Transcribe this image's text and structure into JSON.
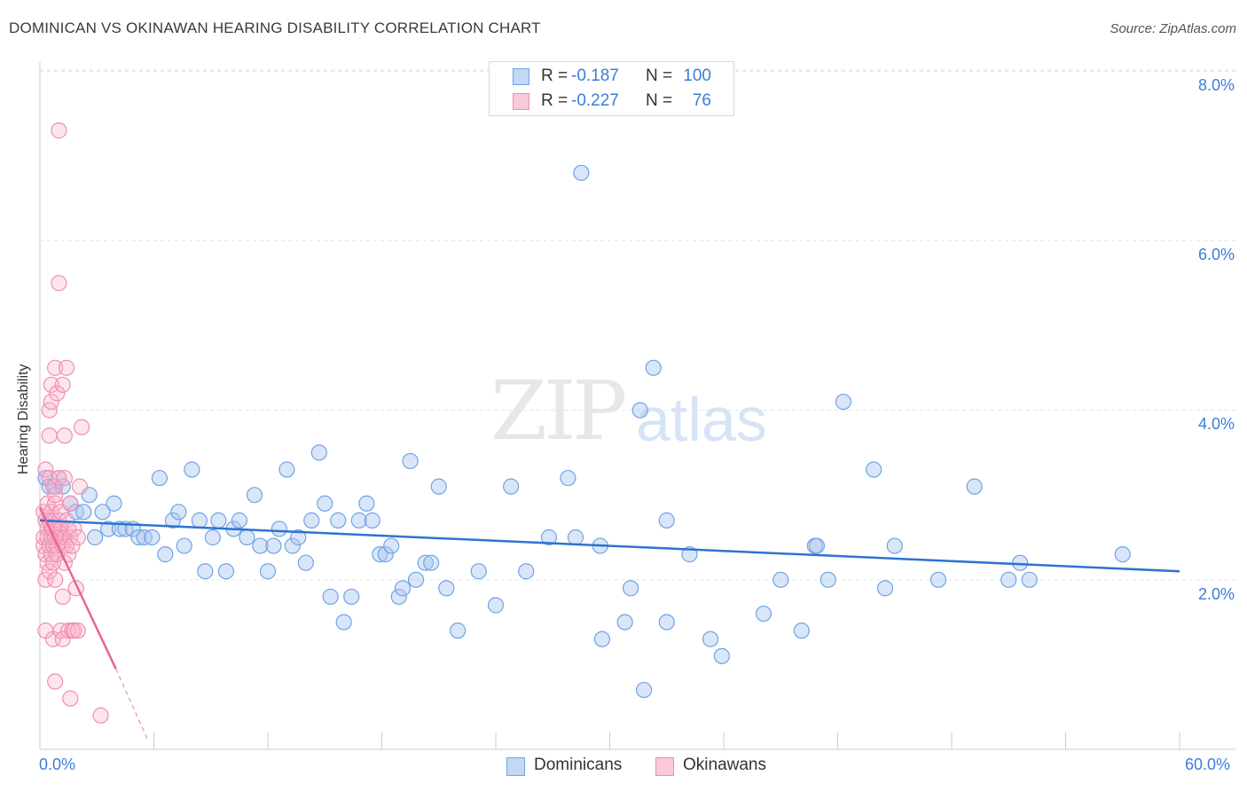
{
  "header": {
    "title": "DOMINICAN VS OKINAWAN HEARING DISABILITY CORRELATION CHART",
    "source": "Source: ZipAtlas.com"
  },
  "watermark": {
    "zip": "ZIP",
    "atlas": "atlas"
  },
  "legend": {
    "r_label": "R =",
    "n_label": "N =",
    "rows": [
      {
        "r": "-0.187",
        "n": "100",
        "color": "#6fa3e6",
        "fill": "#c3d8f5"
      },
      {
        "r": "-0.227",
        "n": "76",
        "color": "#ef8fb0",
        "fill": "#f9c9d9"
      }
    ]
  },
  "bottom_legend": [
    {
      "label": "Dominicans",
      "color": "#6fa3e6",
      "fill": "#c3d8f5"
    },
    {
      "label": "Okinawans",
      "color": "#ef8fb0",
      "fill": "#f9c9d9"
    }
  ],
  "chart_data": {
    "type": "scatter",
    "title": "DOMINICAN VS OKINAWAN HEARING DISABILITY CORRELATION CHART",
    "xlabel": "",
    "ylabel": "Hearing Disability",
    "xlim": [
      0,
      60
    ],
    "ylim": [
      0,
      8.8
    ],
    "x_tick_labels": [
      "0.0%",
      "60.0%"
    ],
    "y_ticks": [
      2,
      4,
      6,
      8
    ],
    "y_tick_labels": [
      "2.0%",
      "4.0%",
      "6.0%",
      "8.0%"
    ],
    "grid": true,
    "series": [
      {
        "name": "Dominicans",
        "color": "#6fa3e6",
        "trend": {
          "x": [
            0,
            60
          ],
          "y": [
            2.7,
            2.1
          ]
        },
        "points": [
          [
            0.3,
            3.2
          ],
          [
            0.5,
            3.1
          ],
          [
            0.8,
            3.1
          ],
          [
            1.0,
            3.2
          ],
          [
            1.2,
            3.1
          ],
          [
            1.6,
            2.9
          ],
          [
            1.9,
            2.8
          ],
          [
            2.3,
            2.8
          ],
          [
            2.6,
            3.0
          ],
          [
            2.9,
            2.5
          ],
          [
            3.3,
            2.8
          ],
          [
            3.6,
            2.6
          ],
          [
            3.9,
            2.9
          ],
          [
            4.2,
            2.6
          ],
          [
            4.5,
            2.6
          ],
          [
            4.9,
            2.6
          ],
          [
            5.2,
            2.5
          ],
          [
            5.5,
            2.5
          ],
          [
            5.9,
            2.5
          ],
          [
            6.3,
            3.2
          ],
          [
            6.6,
            2.3
          ],
          [
            7.0,
            2.7
          ],
          [
            7.3,
            2.8
          ],
          [
            7.6,
            2.4
          ],
          [
            8.0,
            3.3
          ],
          [
            8.4,
            2.7
          ],
          [
            8.7,
            2.1
          ],
          [
            9.1,
            2.5
          ],
          [
            9.4,
            2.7
          ],
          [
            9.8,
            2.1
          ],
          [
            10.2,
            2.6
          ],
          [
            10.5,
            2.7
          ],
          [
            10.9,
            2.5
          ],
          [
            11.3,
            3.0
          ],
          [
            11.6,
            2.4
          ],
          [
            12.0,
            2.1
          ],
          [
            12.3,
            2.4
          ],
          [
            12.6,
            2.6
          ],
          [
            13.0,
            3.3
          ],
          [
            13.3,
            2.4
          ],
          [
            13.6,
            2.5
          ],
          [
            14.0,
            2.2
          ],
          [
            14.3,
            2.7
          ],
          [
            14.7,
            3.5
          ],
          [
            15.0,
            2.9
          ],
          [
            15.3,
            1.8
          ],
          [
            15.7,
            2.7
          ],
          [
            16.0,
            1.5
          ],
          [
            16.4,
            1.8
          ],
          [
            16.8,
            2.7
          ],
          [
            17.2,
            2.9
          ],
          [
            17.5,
            2.7
          ],
          [
            17.9,
            2.3
          ],
          [
            18.2,
            2.3
          ],
          [
            18.5,
            2.4
          ],
          [
            18.9,
            1.8
          ],
          [
            19.1,
            1.9
          ],
          [
            19.5,
            3.4
          ],
          [
            19.8,
            2.0
          ],
          [
            20.3,
            2.2
          ],
          [
            20.6,
            2.2
          ],
          [
            21.0,
            3.1
          ],
          [
            21.4,
            1.9
          ],
          [
            22.0,
            1.4
          ],
          [
            23.1,
            2.1
          ],
          [
            24.0,
            1.7
          ],
          [
            24.8,
            3.1
          ],
          [
            25.6,
            2.1
          ],
          [
            26.8,
            2.5
          ],
          [
            27.8,
            3.2
          ],
          [
            28.2,
            2.5
          ],
          [
            28.5,
            6.8
          ],
          [
            29.5,
            2.4
          ],
          [
            29.6,
            1.3
          ],
          [
            30.8,
            1.5
          ],
          [
            31.1,
            1.9
          ],
          [
            31.6,
            4.0
          ],
          [
            31.8,
            0.7
          ],
          [
            32.3,
            4.5
          ],
          [
            33.0,
            2.7
          ],
          [
            33.0,
            1.5
          ],
          [
            34.2,
            2.3
          ],
          [
            35.3,
            1.3
          ],
          [
            35.9,
            1.1
          ],
          [
            38.1,
            1.6
          ],
          [
            39.0,
            2.0
          ],
          [
            40.1,
            1.4
          ],
          [
            40.8,
            2.4
          ],
          [
            40.9,
            2.4
          ],
          [
            41.5,
            2.0
          ],
          [
            42.3,
            4.1
          ],
          [
            43.9,
            3.3
          ],
          [
            44.5,
            1.9
          ],
          [
            45.0,
            2.4
          ],
          [
            47.3,
            2.0
          ],
          [
            49.2,
            3.1
          ],
          [
            51.0,
            2.0
          ],
          [
            51.6,
            2.2
          ],
          [
            52.1,
            2.0
          ],
          [
            57.0,
            2.3
          ]
        ]
      },
      {
        "name": "Okinawans",
        "color": "#ef8fb0",
        "trend": {
          "x": [
            0,
            4.0
          ],
          "y": [
            2.85,
            0.95
          ]
        },
        "trend_dashed": {
          "x": [
            4.0,
            5.7
          ],
          "y": [
            0.95,
            0.1
          ]
        },
        "points": [
          [
            0.2,
            2.8
          ],
          [
            0.2,
            2.4
          ],
          [
            0.2,
            2.5
          ],
          [
            0.3,
            2.3
          ],
          [
            0.3,
            2.7
          ],
          [
            0.3,
            2.0
          ],
          [
            0.3,
            1.4
          ],
          [
            0.3,
            3.3
          ],
          [
            0.4,
            2.6
          ],
          [
            0.4,
            2.9
          ],
          [
            0.4,
            2.5
          ],
          [
            0.4,
            2.2
          ],
          [
            0.5,
            2.7
          ],
          [
            0.5,
            3.7
          ],
          [
            0.5,
            4.0
          ],
          [
            0.5,
            2.4
          ],
          [
            0.5,
            2.1
          ],
          [
            0.5,
            3.2
          ],
          [
            0.6,
            2.6
          ],
          [
            0.6,
            2.8
          ],
          [
            0.6,
            2.3
          ],
          [
            0.6,
            4.3
          ],
          [
            0.6,
            4.1
          ],
          [
            0.6,
            2.5
          ],
          [
            0.7,
            2.4
          ],
          [
            0.7,
            2.7
          ],
          [
            0.7,
            3.1
          ],
          [
            0.7,
            1.3
          ],
          [
            0.7,
            2.2
          ],
          [
            0.7,
            2.6
          ],
          [
            0.8,
            2.5
          ],
          [
            0.8,
            2.9
          ],
          [
            0.8,
            4.5
          ],
          [
            0.8,
            2.0
          ],
          [
            0.8,
            0.8
          ],
          [
            0.8,
            3.0
          ],
          [
            0.9,
            2.6
          ],
          [
            0.9,
            2.4
          ],
          [
            0.9,
            2.3
          ],
          [
            0.9,
            4.2
          ],
          [
            1.0,
            2.7
          ],
          [
            1.0,
            3.2
          ],
          [
            1.0,
            2.5
          ],
          [
            1.0,
            7.3
          ],
          [
            1.0,
            5.5
          ],
          [
            1.1,
            2.5
          ],
          [
            1.1,
            2.6
          ],
          [
            1.1,
            1.4
          ],
          [
            1.1,
            2.8
          ],
          [
            1.2,
            2.4
          ],
          [
            1.2,
            4.3
          ],
          [
            1.2,
            1.8
          ],
          [
            1.2,
            1.3
          ],
          [
            1.3,
            3.2
          ],
          [
            1.3,
            2.5
          ],
          [
            1.3,
            2.2
          ],
          [
            1.3,
            3.7
          ],
          [
            1.4,
            2.7
          ],
          [
            1.4,
            2.4
          ],
          [
            1.4,
            4.5
          ],
          [
            1.5,
            2.6
          ],
          [
            1.5,
            1.4
          ],
          [
            1.5,
            2.3
          ],
          [
            1.6,
            2.5
          ],
          [
            1.6,
            2.9
          ],
          [
            1.6,
            0.6
          ],
          [
            1.7,
            2.4
          ],
          [
            1.7,
            1.4
          ],
          [
            1.8,
            1.4
          ],
          [
            1.8,
            2.6
          ],
          [
            1.9,
            1.9
          ],
          [
            2.0,
            1.4
          ],
          [
            2.0,
            2.5
          ],
          [
            2.1,
            3.1
          ],
          [
            2.2,
            3.8
          ],
          [
            3.2,
            0.4
          ]
        ]
      }
    ]
  }
}
